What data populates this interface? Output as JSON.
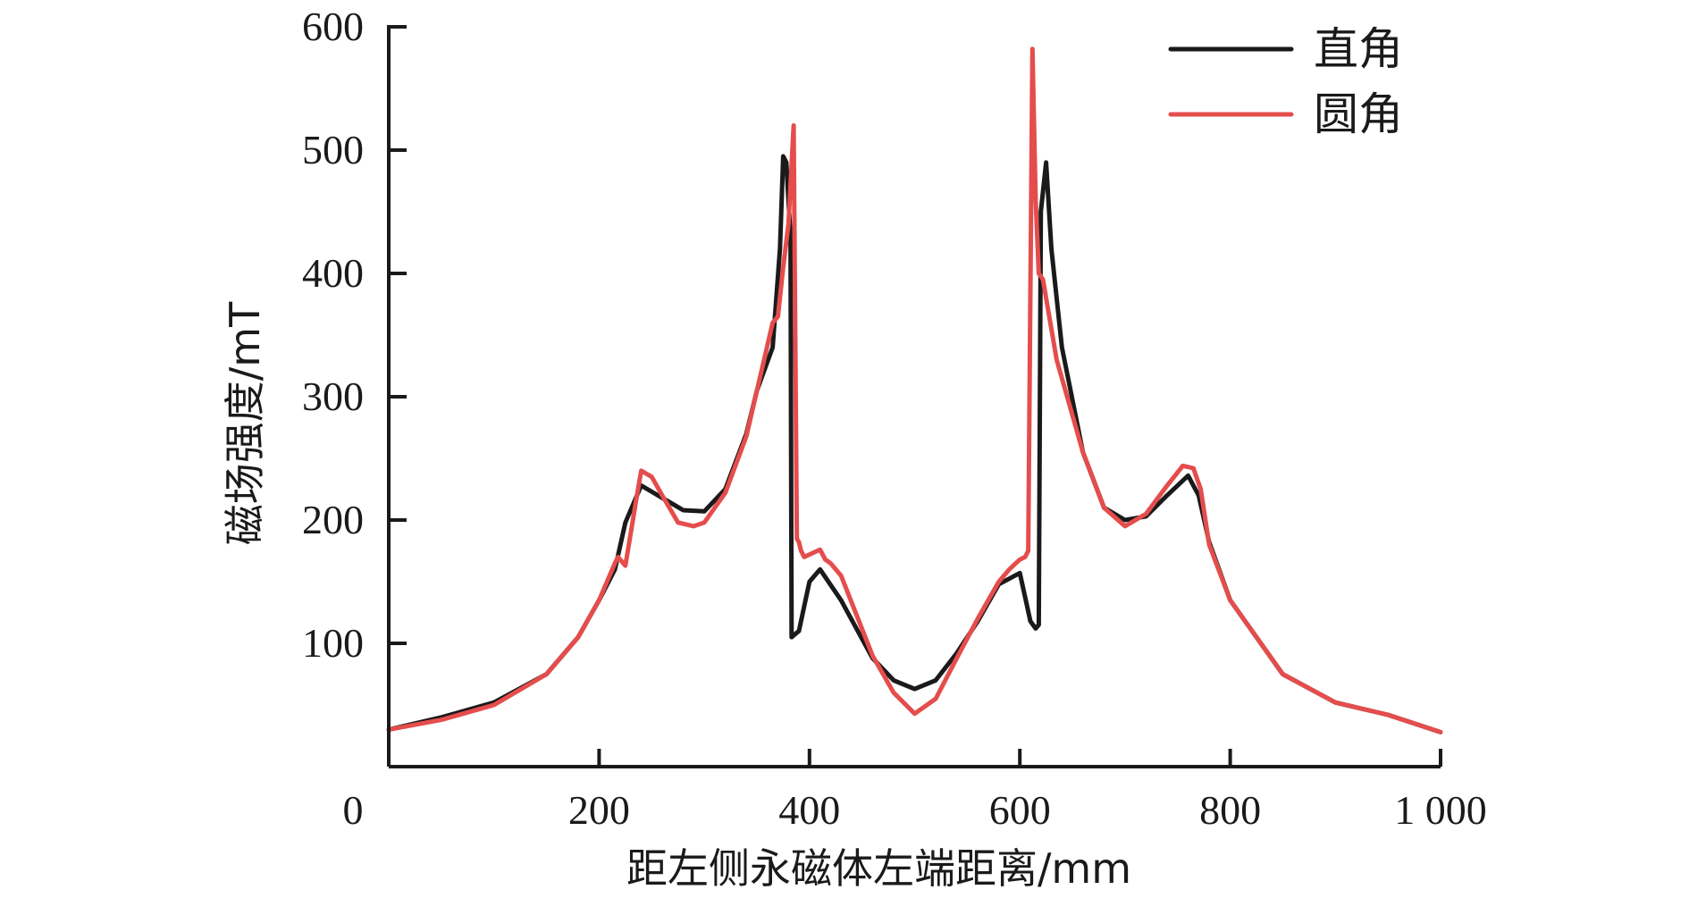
{
  "chart_data": {
    "type": "line",
    "title": "",
    "xlabel": "距左侧永磁体左端距离/mm",
    "ylabel": "磁场强度/mT",
    "xlim": [
      0,
      1000
    ],
    "ylim": [
      0,
      600
    ],
    "x_ticks": [
      0,
      200,
      400,
      600,
      800,
      1000
    ],
    "x_tick_labels": [
      "0",
      "200",
      "400",
      "600",
      "800",
      "1 000"
    ],
    "y_ticks": [
      100,
      200,
      300,
      400,
      500,
      600
    ],
    "y_tick_labels": [
      "100",
      "200",
      "300",
      "400",
      "500",
      "600"
    ],
    "grid": false,
    "legend_position": "top-right",
    "series": [
      {
        "name": "直角",
        "color": "#1a1a1a",
        "x": [
          0,
          50,
          100,
          150,
          180,
          200,
          215,
          225,
          240,
          260,
          280,
          300,
          320,
          340,
          350,
          365,
          372,
          375,
          378,
          382,
          383,
          390,
          400,
          410,
          430,
          460,
          480,
          500,
          520,
          540,
          560,
          580,
          600,
          610,
          615,
          618,
          620,
          625,
          630,
          640,
          660,
          680,
          700,
          720,
          740,
          760,
          770,
          780,
          800,
          850,
          900,
          950,
          1000
        ],
        "y": [
          30,
          40,
          52,
          75,
          105,
          135,
          160,
          198,
          228,
          218,
          208,
          207,
          225,
          270,
          305,
          340,
          420,
          495,
          490,
          430,
          105,
          110,
          150,
          160,
          135,
          88,
          70,
          63,
          70,
          92,
          118,
          148,
          157,
          118,
          112,
          115,
          450,
          490,
          420,
          340,
          255,
          210,
          200,
          203,
          220,
          236,
          220,
          182,
          135,
          75,
          52,
          42,
          28
        ]
      },
      {
        "name": "圆角",
        "color": "#e54d4d",
        "x": [
          0,
          50,
          100,
          150,
          180,
          200,
          215,
          218,
          225,
          235,
          240,
          250,
          260,
          275,
          290,
          300,
          320,
          340,
          365,
          370,
          375,
          380,
          385,
          388,
          390,
          392,
          395,
          400,
          410,
          415,
          420,
          430,
          460,
          480,
          500,
          520,
          540,
          560,
          580,
          590,
          600,
          605,
          608,
          612,
          615,
          618,
          622,
          625,
          635,
          660,
          680,
          700,
          720,
          740,
          755,
          765,
          772,
          780,
          800,
          850,
          900,
          950,
          1000
        ],
        "y": [
          30,
          38,
          50,
          75,
          105,
          135,
          165,
          170,
          163,
          215,
          240,
          235,
          220,
          198,
          195,
          198,
          222,
          268,
          360,
          365,
          405,
          440,
          520,
          185,
          182,
          175,
          170,
          172,
          176,
          168,
          165,
          155,
          90,
          60,
          43,
          55,
          88,
          120,
          150,
          160,
          168,
          170,
          175,
          582,
          460,
          400,
          395,
          380,
          330,
          255,
          210,
          195,
          205,
          228,
          244,
          242,
          225,
          180,
          135,
          75,
          52,
          42,
          28
        ]
      }
    ]
  }
}
